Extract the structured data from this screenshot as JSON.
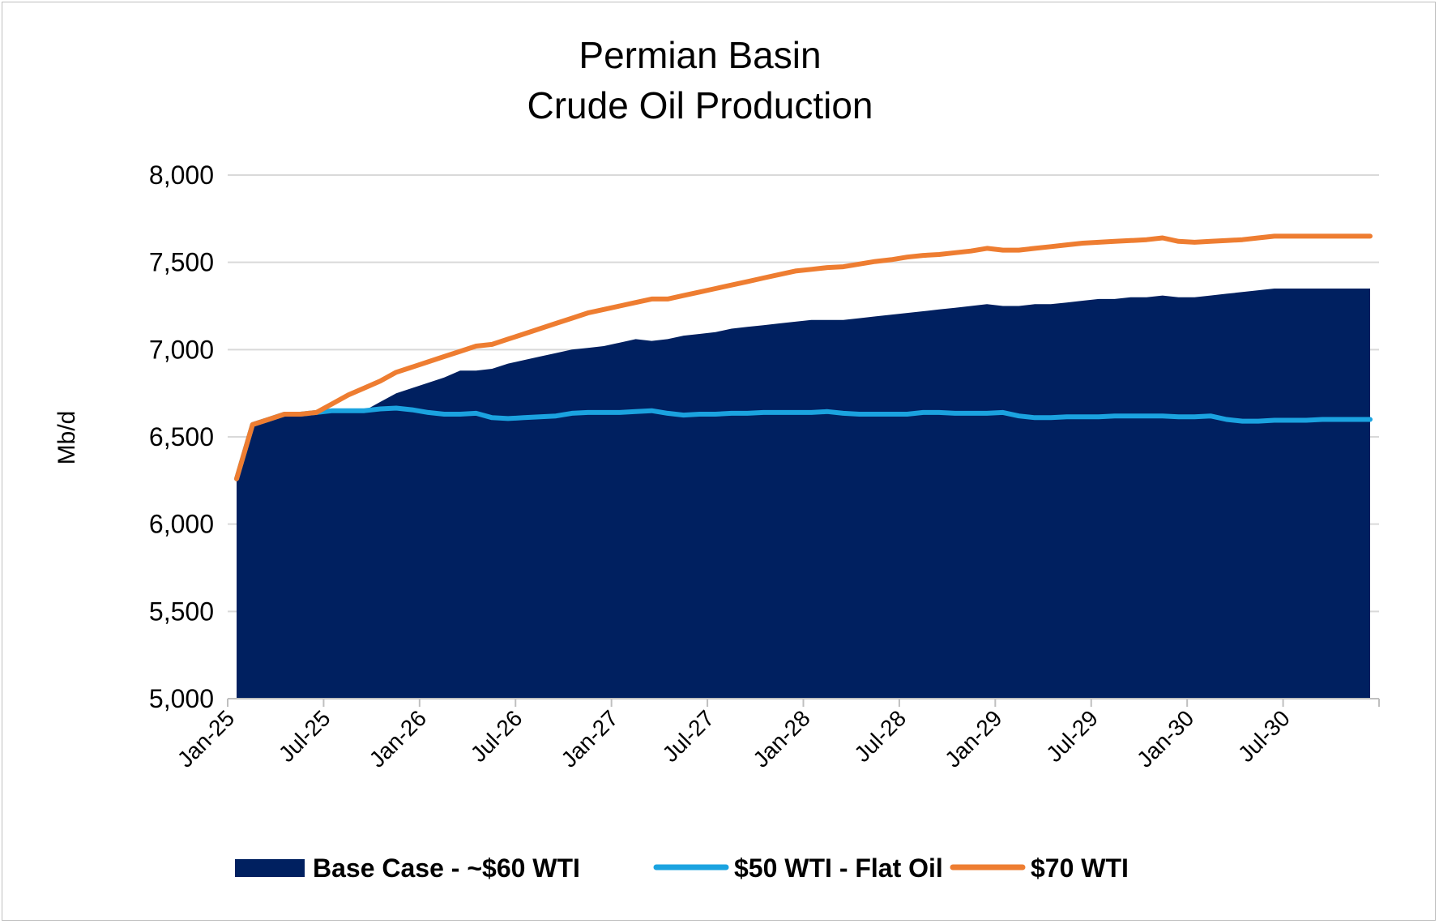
{
  "chart_data": {
    "type": "area",
    "title": [
      "Permian Basin",
      "Crude Oil Production"
    ],
    "ylabel": "Mb/d",
    "xlabel": "",
    "ylim": [
      5000,
      8000
    ],
    "yticks": [
      5000,
      5500,
      6000,
      6500,
      7000,
      7500,
      8000
    ],
    "ytick_labels": [
      "5,000",
      "5,500",
      "6,000",
      "6,500",
      "7,000",
      "7,500",
      "8,000"
    ],
    "x_start": "Jan-25",
    "x_end": "Dec-30",
    "xtick_labels": [
      "Jan-25",
      "Jul-25",
      "Jan-26",
      "Jul-26",
      "Jan-27",
      "Jul-27",
      "Jan-28",
      "Jul-28",
      "Jan-29",
      "Jul-29",
      "Jan-30",
      "Jul-30"
    ],
    "grid": true,
    "legend_position": "bottom",
    "series": [
      {
        "name": "Base Case - ~$60 WTI",
        "kind": "area",
        "color": "#002060",
        "values": [
          6260,
          6570,
          6600,
          6630,
          6630,
          6640,
          6650,
          6650,
          6650,
          6700,
          6750,
          6780,
          6810,
          6840,
          6880,
          6880,
          6890,
          6920,
          6940,
          6960,
          6980,
          7000,
          7010,
          7020,
          7040,
          7060,
          7050,
          7060,
          7080,
          7090,
          7100,
          7120,
          7130,
          7140,
          7150,
          7160,
          7170,
          7170,
          7170,
          7180,
          7190,
          7200,
          7210,
          7220,
          7230,
          7240,
          7250,
          7260,
          7250,
          7250,
          7260,
          7260,
          7270,
          7280,
          7290,
          7290,
          7300,
          7300,
          7310,
          7300,
          7300,
          7310,
          7320,
          7330,
          7340,
          7350,
          7350,
          7350,
          7350,
          7350,
          7350,
          7350
        ]
      },
      {
        "name": "$50 WTI - Flat Oil",
        "kind": "line",
        "color": "#1ba3e0",
        "values": [
          6260,
          6570,
          6600,
          6630,
          6630,
          6640,
          6650,
          6650,
          6650,
          6660,
          6665,
          6655,
          6640,
          6630,
          6630,
          6635,
          6610,
          6605,
          6610,
          6615,
          6620,
          6635,
          6640,
          6640,
          6640,
          6645,
          6650,
          6635,
          6625,
          6630,
          6630,
          6635,
          6635,
          6640,
          6640,
          6640,
          6640,
          6645,
          6635,
          6630,
          6630,
          6630,
          6630,
          6640,
          6640,
          6635,
          6635,
          6635,
          6640,
          6620,
          6610,
          6610,
          6615,
          6615,
          6615,
          6620,
          6620,
          6620,
          6620,
          6615,
          6615,
          6620,
          6600,
          6590,
          6590,
          6595,
          6595,
          6595,
          6600,
          6600,
          6600,
          6600
        ]
      },
      {
        "name": "$70 WTI",
        "kind": "line",
        "color": "#ee7d31",
        "values": [
          6260,
          6570,
          6600,
          6630,
          6630,
          6640,
          6690,
          6740,
          6780,
          6820,
          6870,
          6900,
          6930,
          6960,
          6990,
          7020,
          7030,
          7060,
          7090,
          7120,
          7150,
          7180,
          7210,
          7230,
          7250,
          7270,
          7290,
          7290,
          7310,
          7330,
          7350,
          7370,
          7390,
          7410,
          7430,
          7450,
          7460,
          7470,
          7475,
          7490,
          7505,
          7515,
          7530,
          7540,
          7545,
          7555,
          7565,
          7580,
          7570,
          7570,
          7580,
          7590,
          7600,
          7610,
          7615,
          7620,
          7625,
          7630,
          7640,
          7620,
          7615,
          7620,
          7625,
          7630,
          7640,
          7650,
          7650,
          7650,
          7650,
          7650,
          7650,
          7650
        ]
      }
    ]
  }
}
